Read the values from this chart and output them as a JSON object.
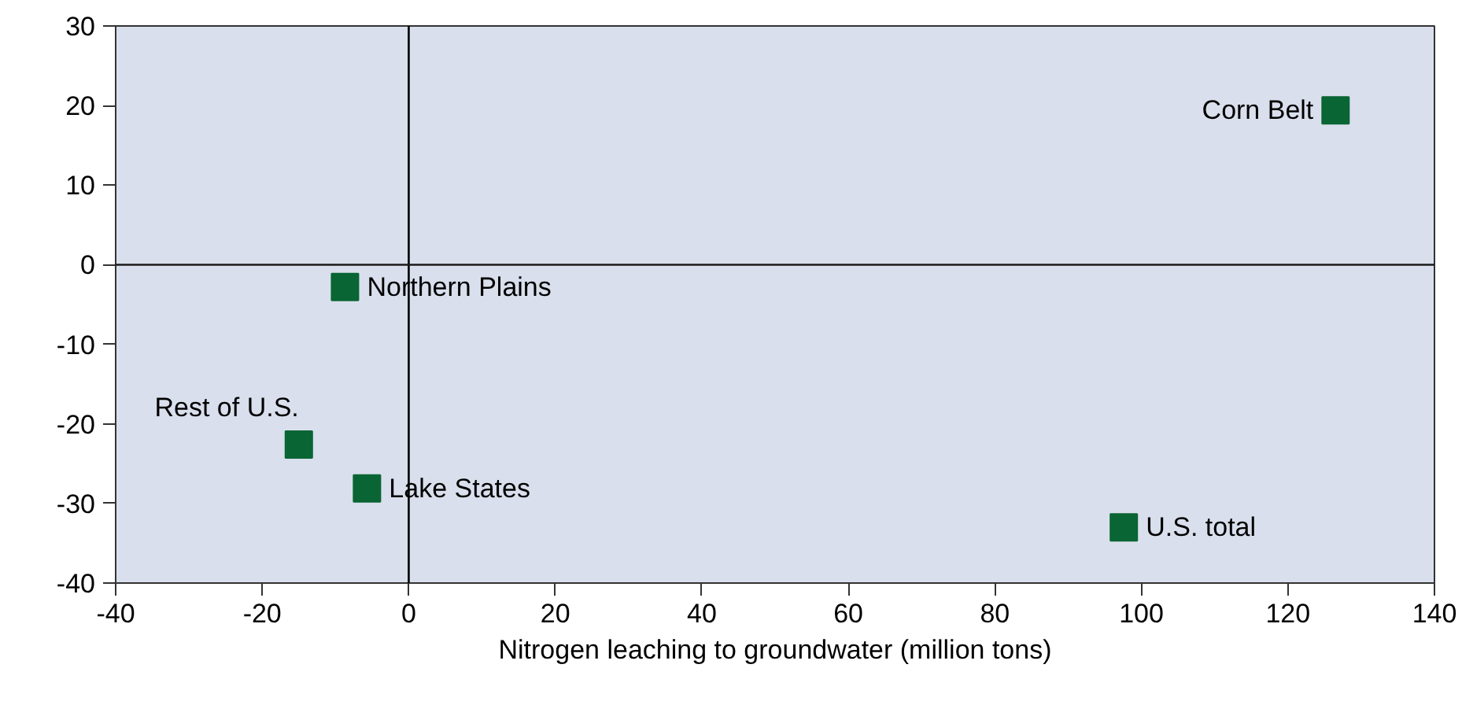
{
  "chart_data": {
    "type": "scatter",
    "xlabel": "Nitrogen leaching to groundwater (million tons)",
    "x": [
      126.5,
      -8.7,
      -15.0,
      -5.7,
      97.6
    ],
    "values": [
      19.4,
      -2.8,
      -22.6,
      -28.1,
      -33.0
    ],
    "color": "#0a6534",
    "marker": "square",
    "xlim": [
      -40,
      140
    ],
    "xticks": [
      -40,
      -20,
      0,
      20,
      40,
      60,
      80,
      100,
      120,
      140
    ],
    "ylim": [
      -40,
      30
    ],
    "yticks": [
      -40,
      -30,
      -20,
      -10,
      0,
      10,
      20,
      30
    ],
    "grid": false,
    "ref_lines": [
      {
        "axis": "x",
        "value": 0,
        "color": "#000000"
      },
      {
        "axis": "y",
        "value": 0,
        "color": "#1a1a1a"
      }
    ],
    "annotations": [
      {
        "text": "Corn Belt",
        "x": 126.5,
        "y": 19.4
      },
      {
        "text": "Northern Plains",
        "x": -8.7,
        "y": -2.8
      },
      {
        "text": "Rest of U.S.",
        "x": -15.0,
        "y": -22.6
      },
      {
        "text": "Lake States",
        "x": -5.7,
        "y": -28.1
      },
      {
        "text": "U.S. total",
        "x": 97.6,
        "y": -33.0
      }
    ]
  }
}
